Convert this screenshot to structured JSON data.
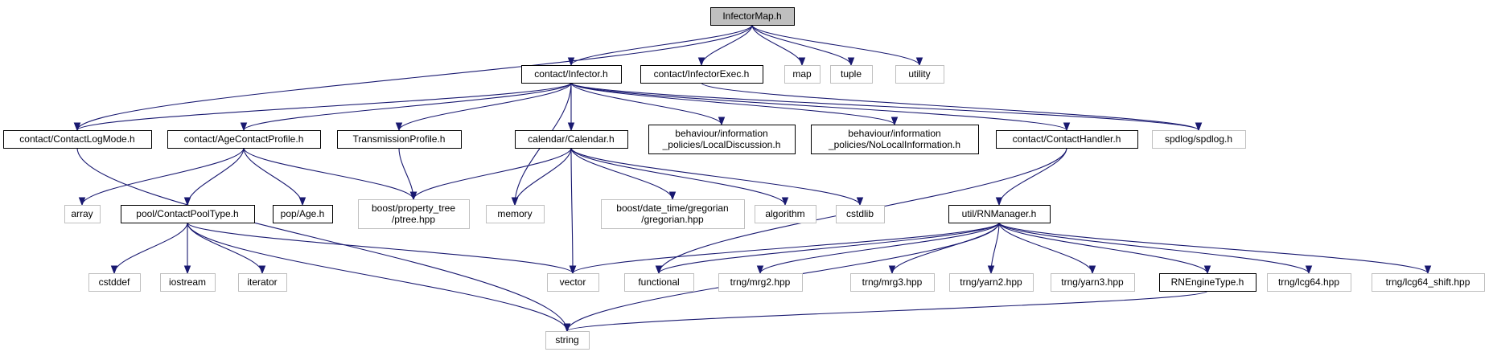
{
  "graph": {
    "nodes": [
      {
        "id": "infector_map",
        "lines": [
          "InfectorMap.h"
        ],
        "kind": "root"
      },
      {
        "id": "contact_infector",
        "lines": [
          "contact/Infector.h"
        ],
        "kind": "header"
      },
      {
        "id": "contact_infector_exec",
        "lines": [
          "contact/InfectorExec.h"
        ],
        "kind": "header"
      },
      {
        "id": "map",
        "lines": [
          "map"
        ],
        "kind": "external"
      },
      {
        "id": "tuple",
        "lines": [
          "tuple"
        ],
        "kind": "external"
      },
      {
        "id": "utility",
        "lines": [
          "utility"
        ],
        "kind": "external"
      },
      {
        "id": "contact_log_mode",
        "lines": [
          "contact/ContactLogMode.h"
        ],
        "kind": "header"
      },
      {
        "id": "age_contact_profile",
        "lines": [
          "contact/AgeContactProfile.h"
        ],
        "kind": "header"
      },
      {
        "id": "transmission_profile",
        "lines": [
          "TransmissionProfile.h"
        ],
        "kind": "header"
      },
      {
        "id": "calendar",
        "lines": [
          "calendar/Calendar.h"
        ],
        "kind": "header"
      },
      {
        "id": "local_discussion",
        "lines": [
          "behaviour/information",
          "_policies/LocalDiscussion.h"
        ],
        "kind": "header"
      },
      {
        "id": "no_local_information",
        "lines": [
          "behaviour/information",
          "_policies/NoLocalInformation.h"
        ],
        "kind": "header"
      },
      {
        "id": "contact_handler",
        "lines": [
          "contact/ContactHandler.h"
        ],
        "kind": "header"
      },
      {
        "id": "spdlog",
        "lines": [
          "spdlog/spdlog.h"
        ],
        "kind": "external"
      },
      {
        "id": "array",
        "lines": [
          "array"
        ],
        "kind": "external"
      },
      {
        "id": "contact_pool_type",
        "lines": [
          "pool/ContactPoolType.h"
        ],
        "kind": "header"
      },
      {
        "id": "pop_age",
        "lines": [
          "pop/Age.h"
        ],
        "kind": "header"
      },
      {
        "id": "ptree",
        "lines": [
          "boost/property_tree",
          "/ptree.hpp"
        ],
        "kind": "external"
      },
      {
        "id": "memory",
        "lines": [
          "memory"
        ],
        "kind": "external"
      },
      {
        "id": "gregorian",
        "lines": [
          "boost/date_time/gregorian",
          "/gregorian.hpp"
        ],
        "kind": "external"
      },
      {
        "id": "algorithm",
        "lines": [
          "algorithm"
        ],
        "kind": "external"
      },
      {
        "id": "cstdlib",
        "lines": [
          "cstdlib"
        ],
        "kind": "external"
      },
      {
        "id": "rn_manager",
        "lines": [
          "util/RNManager.h"
        ],
        "kind": "header"
      },
      {
        "id": "cstddef",
        "lines": [
          "cstddef"
        ],
        "kind": "external"
      },
      {
        "id": "iostream",
        "lines": [
          "iostream"
        ],
        "kind": "external"
      },
      {
        "id": "iterator",
        "lines": [
          "iterator"
        ],
        "kind": "external"
      },
      {
        "id": "vector",
        "lines": [
          "vector"
        ],
        "kind": "external"
      },
      {
        "id": "functional",
        "lines": [
          "functional"
        ],
        "kind": "external"
      },
      {
        "id": "mrg2",
        "lines": [
          "trng/mrg2.hpp"
        ],
        "kind": "external"
      },
      {
        "id": "mrg3",
        "lines": [
          "trng/mrg3.hpp"
        ],
        "kind": "external"
      },
      {
        "id": "yarn2",
        "lines": [
          "trng/yarn2.hpp"
        ],
        "kind": "external"
      },
      {
        "id": "yarn3",
        "lines": [
          "trng/yarn3.hpp"
        ],
        "kind": "external"
      },
      {
        "id": "rn_engine_type",
        "lines": [
          "RNEngineType.h"
        ],
        "kind": "header"
      },
      {
        "id": "lcg64",
        "lines": [
          "trng/lcg64.hpp"
        ],
        "kind": "external"
      },
      {
        "id": "lcg64_shift",
        "lines": [
          "trng/lcg64_shift.hpp"
        ],
        "kind": "external"
      },
      {
        "id": "string",
        "lines": [
          "string"
        ],
        "kind": "external"
      }
    ],
    "edges": [
      [
        "infector_map",
        "contact_infector"
      ],
      [
        "infector_map",
        "contact_infector_exec"
      ],
      [
        "infector_map",
        "map"
      ],
      [
        "infector_map",
        "tuple"
      ],
      [
        "infector_map",
        "utility"
      ],
      [
        "infector_map",
        "contact_log_mode"
      ],
      [
        "contact_infector",
        "contact_log_mode"
      ],
      [
        "contact_infector",
        "age_contact_profile"
      ],
      [
        "contact_infector",
        "transmission_profile"
      ],
      [
        "contact_infector",
        "calendar"
      ],
      [
        "contact_infector",
        "local_discussion"
      ],
      [
        "contact_infector",
        "no_local_information"
      ],
      [
        "contact_infector",
        "contact_handler"
      ],
      [
        "contact_infector",
        "spdlog"
      ],
      [
        "contact_infector",
        "memory"
      ],
      [
        "contact_infector_exec",
        "spdlog"
      ],
      [
        "contact_log_mode",
        "string"
      ],
      [
        "age_contact_profile",
        "array"
      ],
      [
        "age_contact_profile",
        "contact_pool_type"
      ],
      [
        "age_contact_profile",
        "pop_age"
      ],
      [
        "age_contact_profile",
        "ptree"
      ],
      [
        "transmission_profile",
        "ptree"
      ],
      [
        "calendar",
        "ptree"
      ],
      [
        "calendar",
        "memory"
      ],
      [
        "calendar",
        "gregorian"
      ],
      [
        "calendar",
        "algorithm"
      ],
      [
        "calendar",
        "cstdlib"
      ],
      [
        "calendar",
        "vector"
      ],
      [
        "contact_handler",
        "rn_manager"
      ],
      [
        "contact_handler",
        "functional"
      ],
      [
        "contact_pool_type",
        "cstddef"
      ],
      [
        "contact_pool_type",
        "iostream"
      ],
      [
        "contact_pool_type",
        "iterator"
      ],
      [
        "contact_pool_type",
        "vector"
      ],
      [
        "contact_pool_type",
        "string"
      ],
      [
        "rn_manager",
        "vector"
      ],
      [
        "rn_manager",
        "functional"
      ],
      [
        "rn_manager",
        "mrg2"
      ],
      [
        "rn_manager",
        "mrg3"
      ],
      [
        "rn_manager",
        "yarn2"
      ],
      [
        "rn_manager",
        "yarn3"
      ],
      [
        "rn_manager",
        "rn_engine_type"
      ],
      [
        "rn_manager",
        "lcg64"
      ],
      [
        "rn_manager",
        "lcg64_shift"
      ],
      [
        "rn_manager",
        "string"
      ],
      [
        "rn_engine_type",
        "string"
      ]
    ]
  }
}
